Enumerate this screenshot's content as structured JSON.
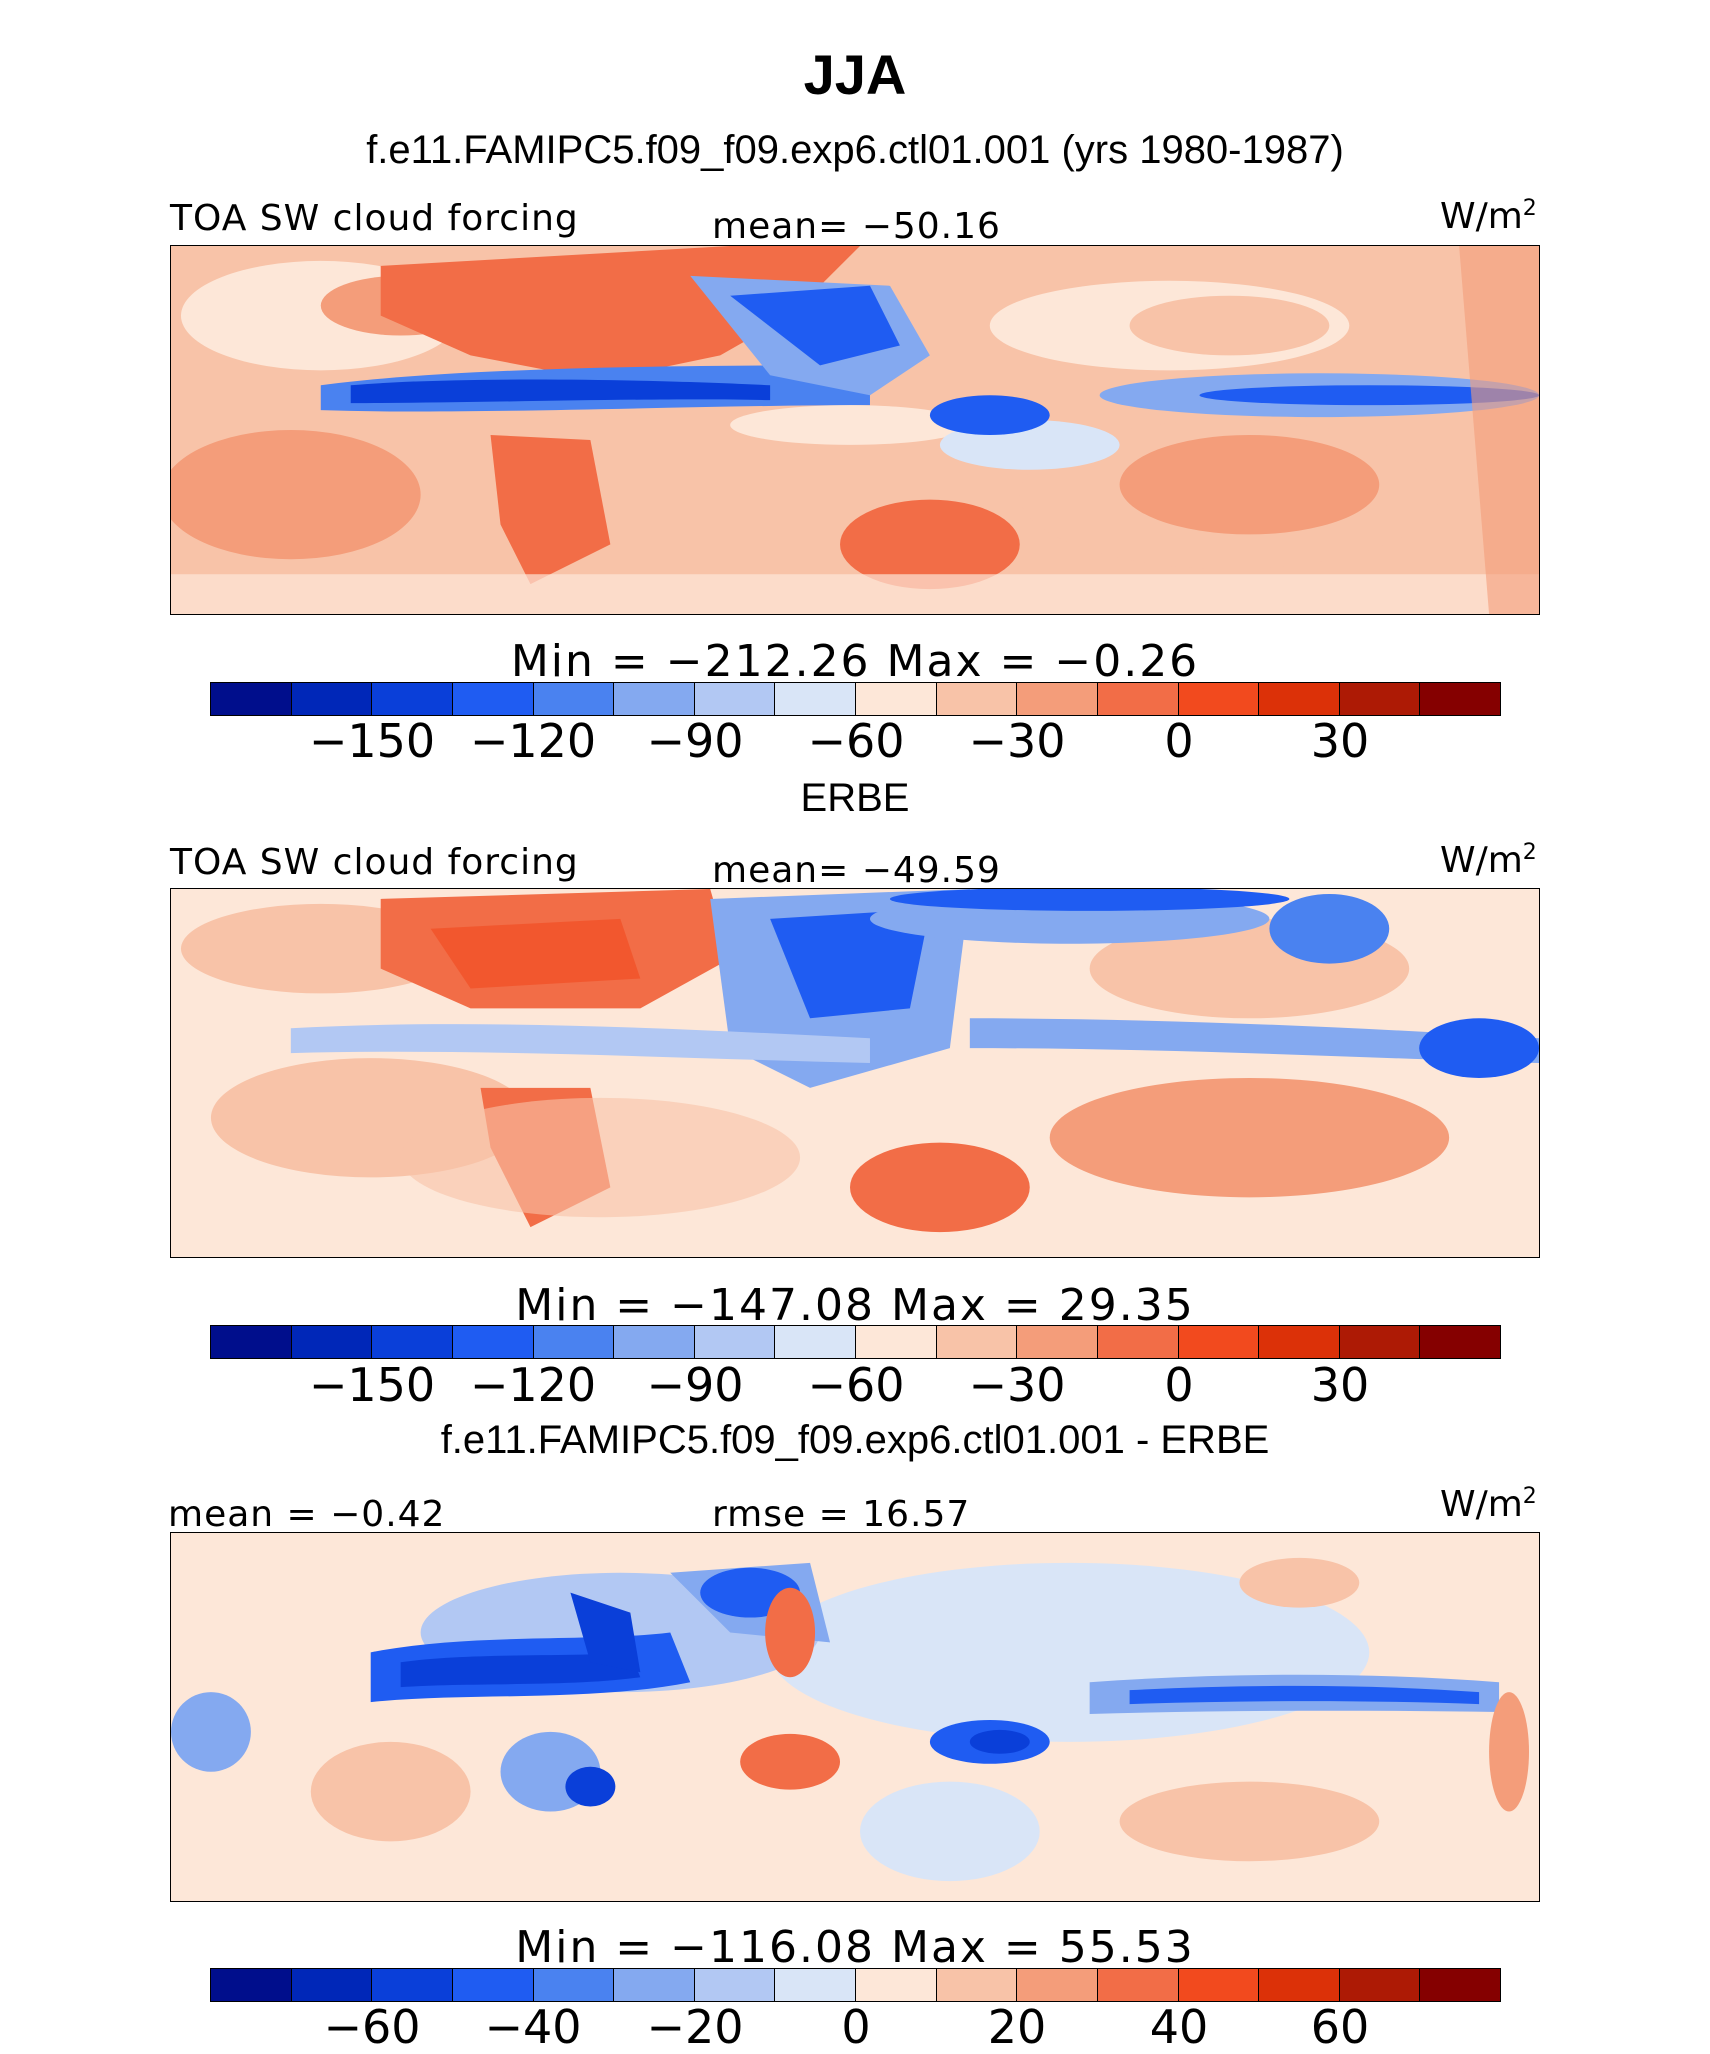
{
  "title": "JJA",
  "panels": [
    {
      "subtitle": "f.e11.FAMIPC5.f09_f09.exp6.ctl01.001 (yrs 1980-1987)",
      "left_label": "TOA SW cloud forcing",
      "center_label": "mean=  −50.16",
      "units": "W/m",
      "units_exp": "2",
      "minmax": "Min  =  −212.26  Max  =    −0.26",
      "colorbar": {
        "ticks": [
          "−150",
          "−120",
          "−90",
          "−60",
          "−30",
          "0",
          "30"
        ]
      }
    },
    {
      "subtitle": "ERBE",
      "left_label": "TOA SW cloud forcing",
      "center_label": "mean=  −49.59",
      "units": "W/m",
      "units_exp": "2",
      "minmax": "Min  =  −147.08  Max  =    29.35",
      "colorbar": {
        "ticks": [
          "−150",
          "−120",
          "−90",
          "−60",
          "−30",
          "0",
          "30"
        ]
      }
    },
    {
      "subtitle": "f.e11.FAMIPC5.f09_f09.exp6.ctl01.001 - ERBE",
      "left_label": "mean  =   −0.42",
      "center_label": "rmse  =    16.57",
      "units": "W/m",
      "units_exp": "2",
      "minmax": "Min  =  −116.08  Max  =    55.53",
      "colorbar": {
        "ticks": [
          "−60",
          "−40",
          "−20",
          "0",
          "20",
          "40",
          "60"
        ]
      }
    }
  ],
  "palette": [
    "#000e8c",
    "#0027b8",
    "#0a3fd9",
    "#1f5cf2",
    "#4a82f0",
    "#84a9f0",
    "#b2c8f3",
    "#d9e5f7",
    "#fde7d8",
    "#f8c3a8",
    "#f49d7a",
    "#f26d47",
    "#f24a1e",
    "#dc3108",
    "#ad1a05",
    "#850000"
  ]
}
